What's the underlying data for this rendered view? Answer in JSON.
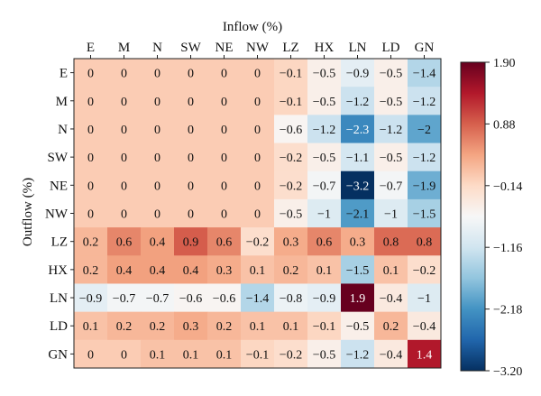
{
  "chart_data": {
    "type": "heatmap",
    "xlabel": "Inflow (%)",
    "ylabel": "Outflow (%)",
    "columns": [
      "E",
      "M",
      "N",
      "SW",
      "NE",
      "NW",
      "LZ",
      "HX",
      "LN",
      "LD",
      "GN"
    ],
    "rows": [
      "E",
      "M",
      "N",
      "SW",
      "NE",
      "NW",
      "LZ",
      "HX",
      "LN",
      "LD",
      "GN"
    ],
    "values": [
      [
        0,
        0,
        0,
        0,
        0,
        0,
        -0.1,
        -0.5,
        -0.9,
        -0.5,
        -1.4
      ],
      [
        0,
        0,
        0,
        0,
        0,
        0,
        -0.1,
        -0.5,
        -1.2,
        -0.5,
        -1.2
      ],
      [
        0,
        0,
        0,
        0,
        0,
        0,
        -0.6,
        -1.2,
        -2.3,
        -1.2,
        -2
      ],
      [
        0,
        0,
        0,
        0,
        0,
        0,
        -0.2,
        -0.5,
        -1.1,
        -0.5,
        -1.2
      ],
      [
        0,
        0,
        0,
        0,
        0,
        0,
        -0.2,
        -0.7,
        -3.2,
        -0.7,
        -1.9
      ],
      [
        0,
        0,
        0,
        0,
        0,
        0,
        -0.5,
        -1,
        -2.1,
        -1,
        -1.5
      ],
      [
        0.2,
        0.6,
        0.4,
        0.9,
        0.6,
        -0.2,
        0.3,
        0.6,
        0.3,
        0.8,
        0.8
      ],
      [
        0.2,
        0.4,
        0.4,
        0.4,
        0.3,
        0.1,
        0.2,
        0.1,
        -1.5,
        0.1,
        -0.2
      ],
      [
        -0.9,
        -0.7,
        -0.7,
        -0.6,
        -0.6,
        -1.4,
        -0.8,
        -0.9,
        1.9,
        -0.4,
        -1
      ],
      [
        0.1,
        0.2,
        0.2,
        0.3,
        0.2,
        0.1,
        0.1,
        -0.1,
        -0.5,
        0.2,
        -0.4
      ],
      [
        0,
        0,
        0.1,
        0.1,
        0.1,
        -0.1,
        -0.2,
        -0.5,
        -1.2,
        -0.4,
        1.4
      ]
    ],
    "colorbar": {
      "min": -3.2,
      "max": 1.9,
      "ticks": [
        1.9,
        0.88,
        -0.14,
        -1.16,
        -2.18,
        -3.2
      ],
      "tick_labels": [
        "1.90",
        "0.88",
        "−0.14",
        "−1.16",
        "−2.18",
        "−3.20"
      ],
      "colormap": "RdBu_r",
      "colors": [
        "#053061",
        "#2166ac",
        "#4393c3",
        "#92c5de",
        "#d1e5f0",
        "#f7f7f7",
        "#fddbc7",
        "#f4a582",
        "#d6604d",
        "#b2182b",
        "#67001f"
      ]
    }
  }
}
